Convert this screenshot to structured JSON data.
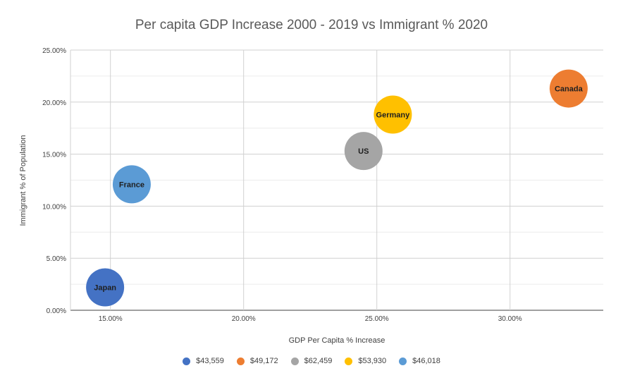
{
  "chart_data": {
    "type": "scatter",
    "title": "Per capita GDP Increase 2000 - 2019 vs Immigrant % 2020",
    "xlabel": "GDP Per Capita % Increase",
    "ylabel": "Immigrant % of Population",
    "xlim": [
      13.5,
      33.5
    ],
    "ylim": [
      0,
      25
    ],
    "x_ticks": [
      {
        "value": 15,
        "label": "15.00%"
      },
      {
        "value": 20,
        "label": "20.00%"
      },
      {
        "value": 25,
        "label": "25.00%"
      },
      {
        "value": 30,
        "label": "30.00%"
      }
    ],
    "y_ticks": [
      {
        "value": 0,
        "label": "0.00%"
      },
      {
        "value": 5,
        "label": "5.00%"
      },
      {
        "value": 10,
        "label": "10.00%"
      },
      {
        "value": 15,
        "label": "15.00%"
      },
      {
        "value": 20,
        "label": "20.00%"
      },
      {
        "value": 25,
        "label": "25.00%"
      }
    ],
    "minor_y_gridlines": [
      2.5,
      7.5,
      12.5,
      17.5,
      22.5
    ],
    "grid": true,
    "legend_position": "bottom",
    "series": [
      {
        "name": "$43,559",
        "label": "Japan",
        "x": 14.8,
        "y": 2.2,
        "color": "#4472C4"
      },
      {
        "name": "$49,172",
        "label": "Canada",
        "x": 32.2,
        "y": 21.3,
        "color": "#ED7D31"
      },
      {
        "name": "$62,459",
        "label": "US",
        "x": 24.5,
        "y": 15.3,
        "color": "#A5A5A5"
      },
      {
        "name": "$53,930",
        "label": "Germany",
        "x": 25.6,
        "y": 18.8,
        "color": "#FFC000"
      },
      {
        "name": "$46,018",
        "label": "France",
        "x": 15.8,
        "y": 12.1,
        "color": "#5B9BD5"
      }
    ]
  }
}
